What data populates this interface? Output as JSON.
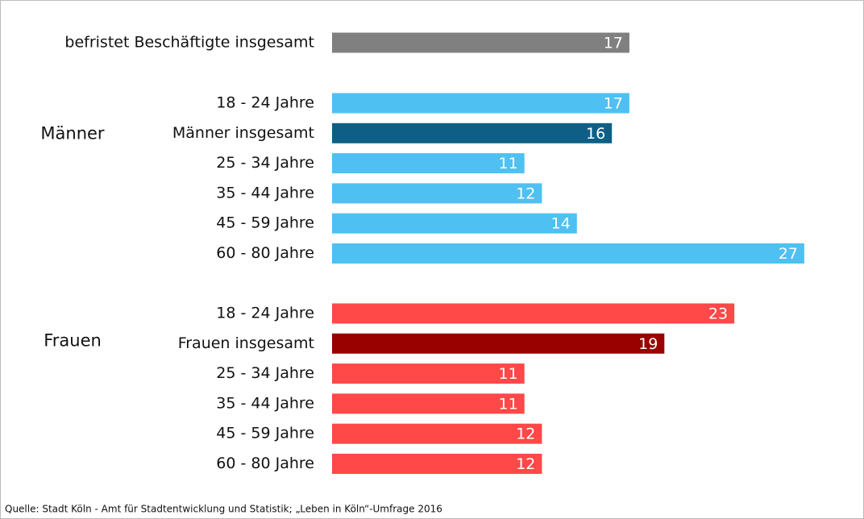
{
  "chart_data": {
    "type": "bar",
    "categories": [
      "befristet Beschäftigte insgesamt",
      "18 - 24 Jahre",
      "Männer insgesamt",
      "25 - 34 Jahre",
      "35 - 44 Jahre",
      "45 - 59 Jahre",
      "60 - 80 Jahre",
      "18 - 24 Jahre",
      "Frauen insgesamt",
      "25 - 34 Jahre",
      "35 - 44 Jahre",
      "45 - 59 Jahre",
      "60 - 80 Jahre"
    ],
    "values": [
      17,
      17,
      16,
      11,
      12,
      14,
      27,
      23,
      19,
      11,
      11,
      12,
      12
    ],
    "colors": [
      "#808080",
      "#4fc0f2",
      "#0e5f86",
      "#4fc0f2",
      "#4fc0f2",
      "#4fc0f2",
      "#4fc0f2",
      "#ff4848",
      "#990000",
      "#ff4848",
      "#ff4848",
      "#ff4848",
      "#ff4848"
    ],
    "group_labels": [
      "Männer",
      "Frauen"
    ],
    "source": "Quelle: Stadt Köln - Amt für Stadtentwicklung und Statistik; „Leben in Köln“-Umfrage 2016"
  }
}
